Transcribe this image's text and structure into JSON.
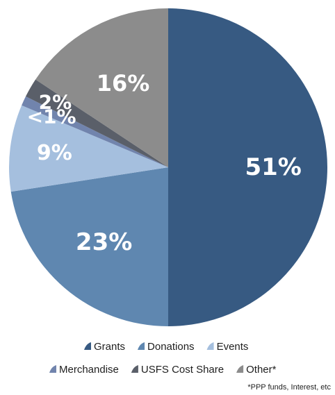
{
  "chart_data": {
    "type": "pie",
    "title": "",
    "categories": [
      "Grants",
      "Donations",
      "Events",
      "Merchandise",
      "USFS Cost Share",
      "Other*"
    ],
    "values": [
      51,
      23,
      9,
      1,
      2,
      16
    ],
    "slice_labels": [
      "51%",
      "23%",
      "9%",
      "<1%",
      "2%",
      "16%"
    ],
    "colors": [
      "#375a82",
      "#5f87b0",
      "#a5bfde",
      "#7184ad",
      "#5a5f69",
      "#8c8c8c"
    ],
    "start": "12 o'clock",
    "direction": "clockwise",
    "legend": {
      "placement": "bottom",
      "rows": [
        [
          "Grants",
          "Donations",
          "Events"
        ],
        [
          "Merchandise",
          "USFS Cost Share",
          "Other*"
        ]
      ]
    },
    "footnote": "*PPP funds, Interest, etc"
  }
}
